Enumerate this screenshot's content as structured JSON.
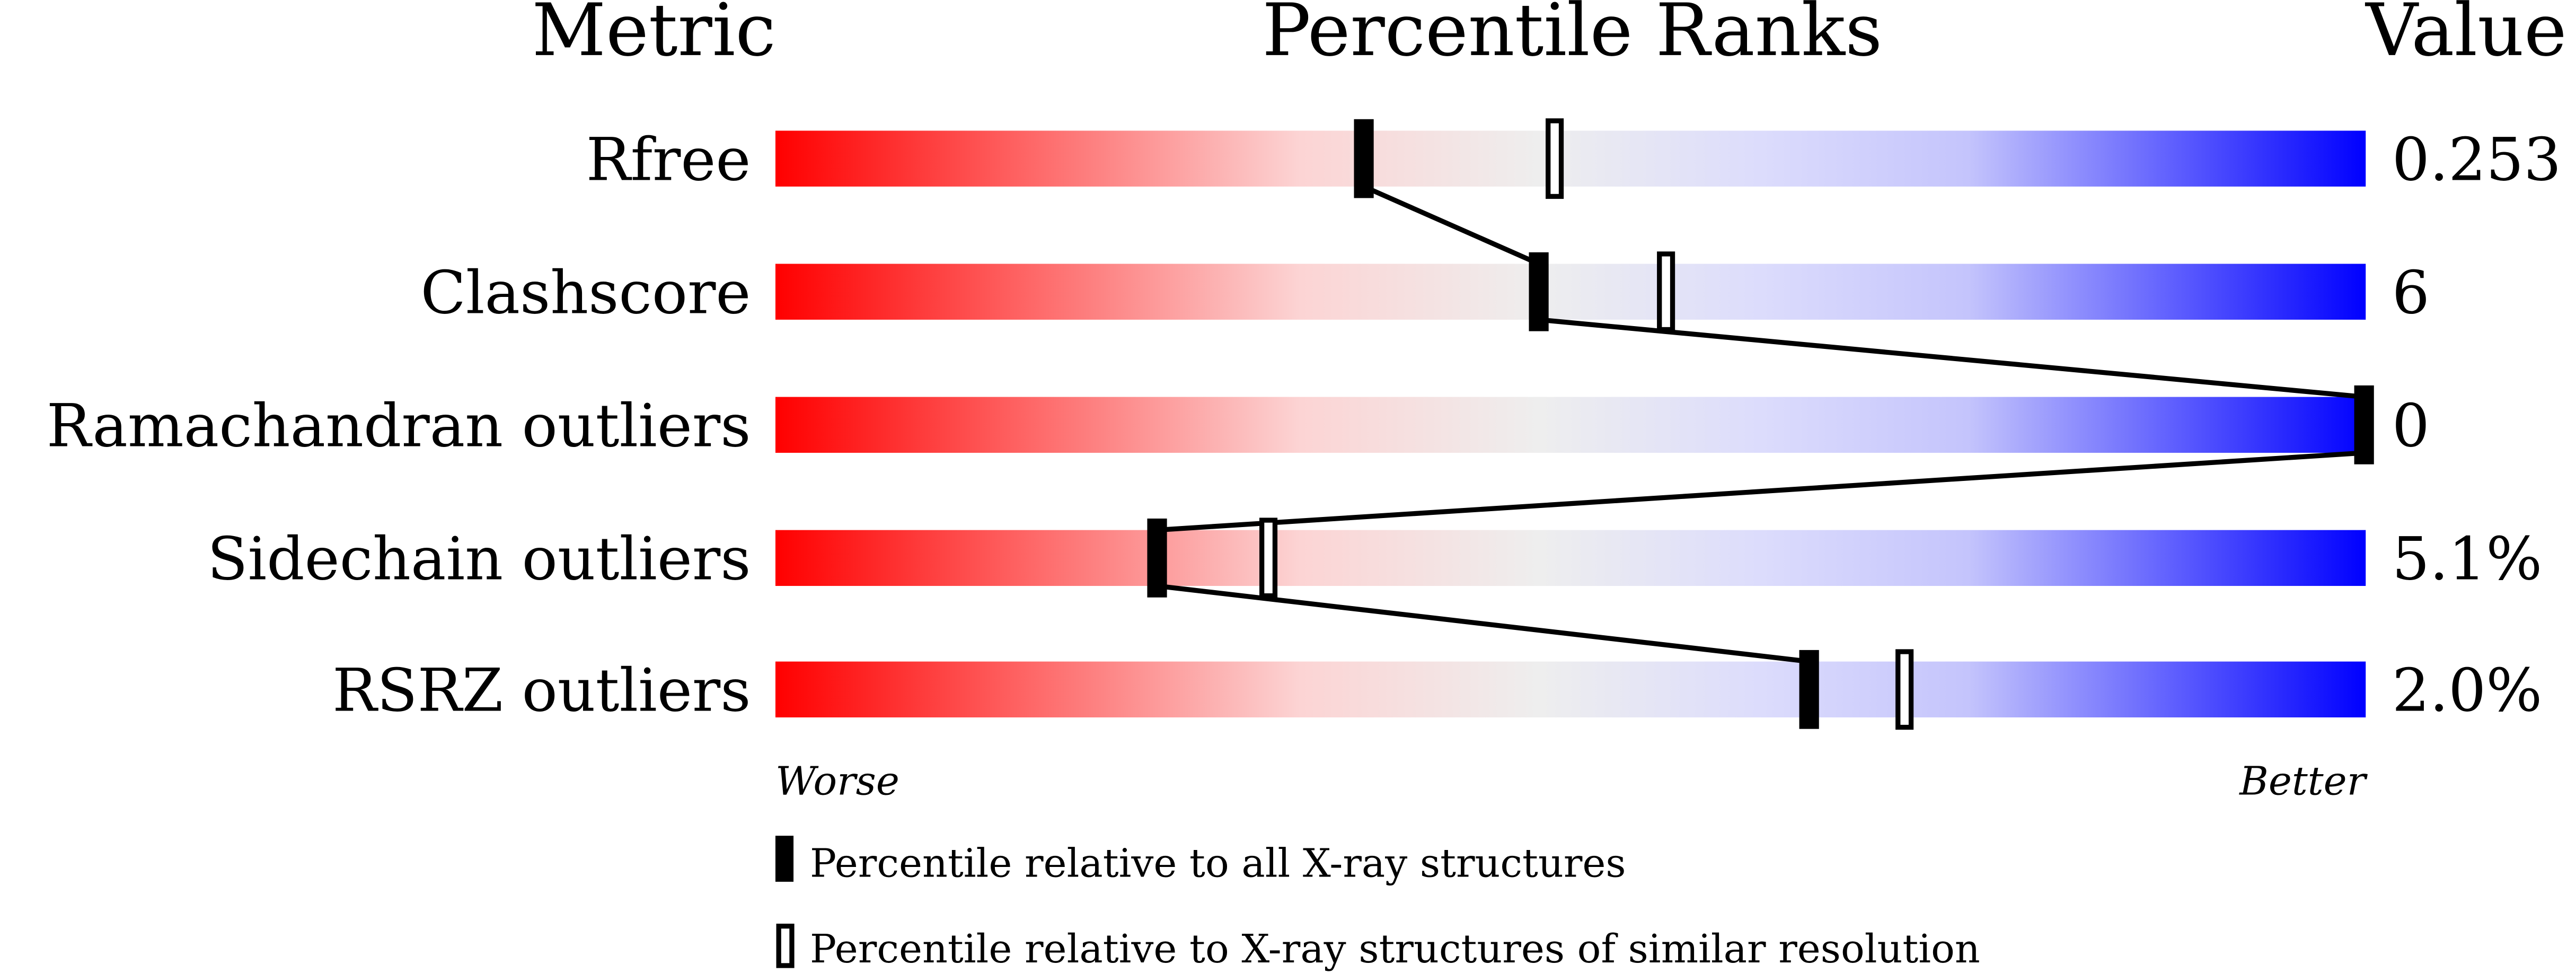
{
  "chart_data": {
    "type": "bar",
    "headers": {
      "metric": "Metric",
      "ranks": "Percentile Ranks",
      "value": "Value"
    },
    "axis": {
      "min": 0,
      "max": 100,
      "low_label": "Worse",
      "high_label": "Better"
    },
    "gradient_colors": [
      "#ff0000",
      "#fddddd",
      "#eeeeee",
      "#ddddff",
      "#0000ff"
    ],
    "rows": [
      {
        "metric": "Rfree",
        "value": "0.253",
        "percentile_all": 37,
        "percentile_similar": 49
      },
      {
        "metric": "Clashscore",
        "value": "6",
        "percentile_all": 48,
        "percentile_similar": 56
      },
      {
        "metric": "Ramachandran outliers",
        "value": "0",
        "percentile_all": 100,
        "percentile_similar": null
      },
      {
        "metric": "Sidechain outliers",
        "value": "5.1%",
        "percentile_all": 24,
        "percentile_similar": 31
      },
      {
        "metric": "RSRZ outliers",
        "value": "2.0%",
        "percentile_all": 65,
        "percentile_similar": 71
      }
    ],
    "legend": [
      {
        "marker": "filled",
        "label": "Percentile relative to all X-ray structures"
      },
      {
        "marker": "hollow",
        "label": "Percentile relative to X-ray structures of similar resolution"
      }
    ]
  }
}
